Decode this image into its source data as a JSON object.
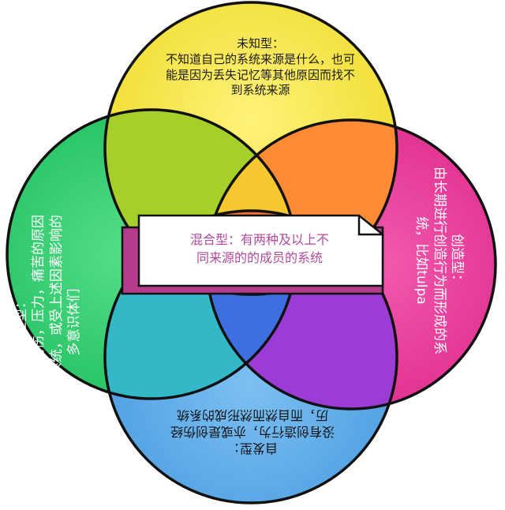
{
  "diagram": {
    "top": {
      "heading": "未知型：",
      "lines": [
        "不知道自己的系统来源是什么，也可",
        "能是因为丢失记忆等其他原因而找不",
        "到系统来源"
      ]
    },
    "left": {
      "heading": "适应型：",
      "lines": [
        "尝试去应对创伤，压力，痛苦的原因",
        "而成为的系统，或受上述因素影响的",
        "多意识体们"
      ]
    },
    "right": {
      "heading": "创造型：",
      "lines": [
        "由长期进行创造行为而形成的系",
        "统，比如tulpa"
      ]
    },
    "bottom": {
      "heading": "自发型：",
      "lines": [
        "没有创造行为，亦或是创伤经",
        "历，而自然而然形成的系统"
      ]
    },
    "center": {
      "lines": [
        "混合型：有两种及以上不",
        "同来源的的成员的系统"
      ]
    }
  },
  "colors": {
    "top_circle": "#f2e23a",
    "left_circle": "#2fcf6f",
    "right_circle": "#e83a9a",
    "bottom_circle": "#5aa8e8",
    "top_left_overlap": "#a6cf2a",
    "top_right_overlap": "#ff8c35",
    "left_bottom_overlap": "#33b8c8",
    "right_bottom_overlap": "#9b3cd6",
    "center_core": "#3d6fe0",
    "card_shadow": "#b33d8c",
    "center_text": "#b04a9a"
  }
}
